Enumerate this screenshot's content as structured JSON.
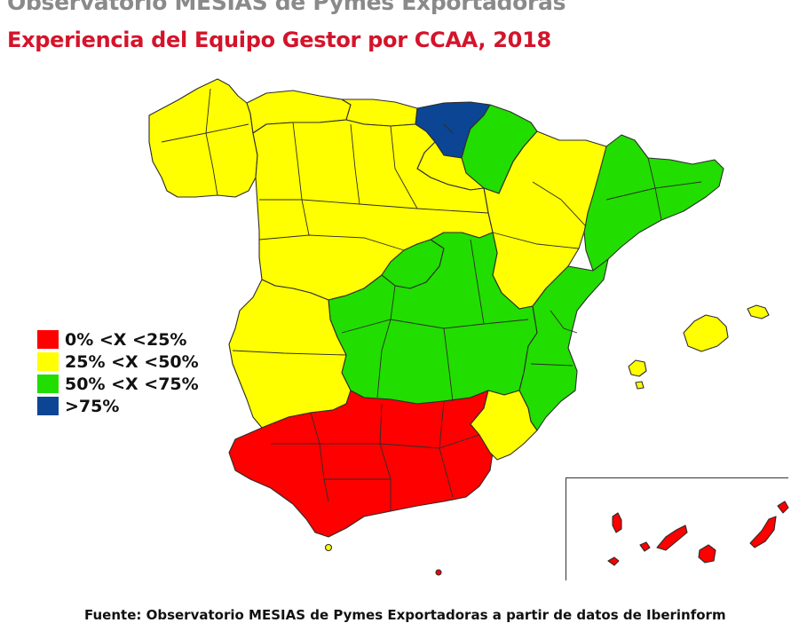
{
  "header": {
    "subtitle": "Observatorio MESIAS de Pymes Exportadoras",
    "title": "Experiencia del Equipo Gestor por CCAA, 2018"
  },
  "legend": [
    {
      "label": "0% <X <25%",
      "color": "#ff0000"
    },
    {
      "label": "25% <X <50%",
      "color": "#ffff00"
    },
    {
      "label": "50% <X <75%",
      "color": "#22dd00"
    },
    {
      "label": ">75%",
      "color": "#0b4594"
    }
  ],
  "regions": [
    {
      "name": "Galicia",
      "class": "25-50"
    },
    {
      "name": "Asturias",
      "class": "25-50"
    },
    {
      "name": "Cantabria",
      "class": "25-50"
    },
    {
      "name": "País Vasco",
      "class": ">75"
    },
    {
      "name": "Navarra",
      "class": "50-75"
    },
    {
      "name": "La Rioja",
      "class": "25-50"
    },
    {
      "name": "Aragón",
      "class": "25-50"
    },
    {
      "name": "Cataluña",
      "class": "50-75"
    },
    {
      "name": "Castilla y León",
      "class": "25-50"
    },
    {
      "name": "Madrid",
      "class": "50-75"
    },
    {
      "name": "Castilla-La Mancha",
      "class": "50-75"
    },
    {
      "name": "Comunidad Valenciana",
      "class": "50-75"
    },
    {
      "name": "Extremadura",
      "class": "25-50"
    },
    {
      "name": "Andalucía",
      "class": "0-25"
    },
    {
      "name": "Murcia",
      "class": "25-50"
    },
    {
      "name": "Baleares",
      "class": "25-50"
    },
    {
      "name": "Canarias",
      "class": "0-25"
    },
    {
      "name": "Ceuta",
      "class": "25-50"
    },
    {
      "name": "Melilla",
      "class": "0-25"
    }
  ],
  "source": "Fuente: Observatorio MESIAS de Pymes Exportadoras a partir de datos de Iberinform"
}
